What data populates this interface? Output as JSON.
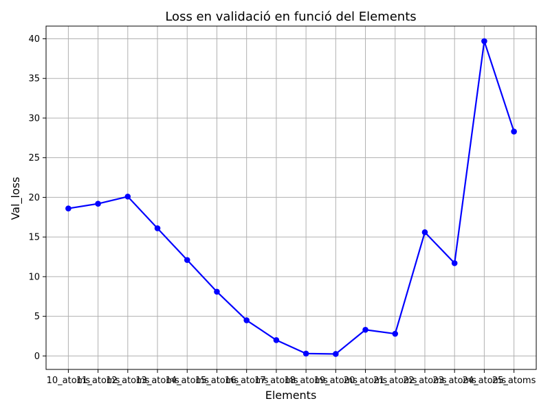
{
  "chart_data": {
    "type": "line",
    "title": "Loss en validació en funció del Elements",
    "xlabel": "Elements",
    "ylabel": "Val_loss",
    "categories": [
      "10_atoms",
      "11_atoms",
      "12_atoms",
      "13_atoms",
      "14_atoms",
      "15_atoms",
      "16_atoms",
      "17_atoms",
      "18_atoms",
      "19_atoms",
      "20_atoms",
      "21_atoms",
      "22_atoms",
      "23_atoms",
      "24_atoms",
      "25_atoms"
    ],
    "series": [
      {
        "values": [
          18.6,
          19.2,
          20.1,
          16.1,
          12.1,
          8.1,
          4.5,
          2.0,
          0.3,
          0.25,
          3.3,
          2.8,
          15.6,
          11.7,
          39.7,
          28.3
        ]
      }
    ],
    "ylim": [
      -1.7,
      41.6
    ],
    "yticks": [
      0,
      5,
      10,
      15,
      20,
      25,
      30,
      35,
      40
    ],
    "grid": true,
    "colors": {
      "line": "#0000ff",
      "grid": "#b0b0b0",
      "axis": "#000000"
    }
  }
}
